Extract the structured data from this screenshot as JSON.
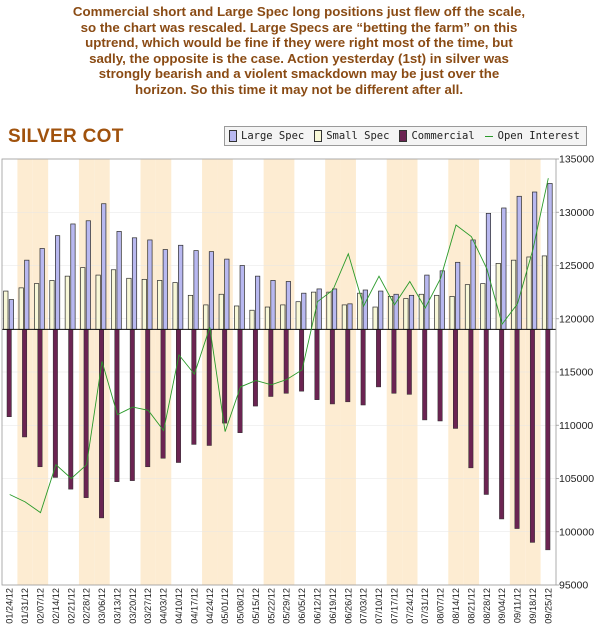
{
  "commentary": "Commercial short and Large Spec long positions just flew off the scale,\nso the chart was rescaled. Large Specs are “betting the farm” on this\nuptrend, which would be fine if they were right most of the time, but\nsadly, the opposite is the case. Action yesterday (1st) in silver was\nstrongly bearish and a violent smackdown may be just over the\nhorizon. So this time it may not be different after all.",
  "chart_data": {
    "type": "bar",
    "title": "SILVER COT",
    "legend": [
      {
        "name": "Large Spec",
        "color": "#b8b8f0",
        "kind": "bar"
      },
      {
        "name": "Small Spec",
        "color": "#f8f8d8",
        "kind": "bar"
      },
      {
        "name": "Commercial",
        "color": "#6b2452",
        "kind": "bar"
      },
      {
        "name": "Open Interest",
        "color": "#2a9a2a",
        "kind": "line"
      }
    ],
    "legend_position": "top-right",
    "ylim": [
      95000,
      135000
    ],
    "yticks": [
      95000,
      100000,
      105000,
      110000,
      115000,
      120000,
      125000,
      130000,
      135000
    ],
    "zero_value": 119000,
    "x_tick_labels": [
      "01/24/12",
      "01/31/12",
      "02/07/12",
      "02/14/12",
      "02/21/12",
      "02/28/12",
      "03/06/12",
      "03/13/12",
      "03/20/12",
      "03/27/12",
      "04/03/12",
      "04/10/12",
      "04/17/12",
      "04/24/12",
      "05/01/12",
      "05/08/12",
      "05/15/12",
      "05/22/12",
      "05/29/12",
      "06/05/12",
      "06/12/12",
      "06/19/12",
      "06/26/12",
      "07/03/12",
      "07/10/12",
      "07/17/12",
      "07/24/12",
      "07/31/12",
      "08/07/12",
      "08/14/12",
      "08/21/12",
      "08/28/12",
      "09/04/12",
      "09/11/12",
      "09/18/12",
      "09/25/12"
    ],
    "series": [
      {
        "name": "Large Spec",
        "values": [
          121.8,
          125.5,
          126.6,
          127.8,
          128.9,
          129.2,
          130.8,
          128.2,
          127.6,
          127.4,
          126.5,
          126.9,
          126.4,
          126.3,
          125.6,
          125.0,
          124.0,
          123.6,
          123.5,
          122.4,
          122.8,
          122.8,
          121.4,
          122.7,
          122.6,
          122.3,
          122.2,
          124.1,
          124.5,
          125.3,
          127.4,
          129.9,
          130.4,
          131.5,
          131.9,
          132.7
        ]
      },
      {
        "name": "Small Spec",
        "values": [
          122.6,
          122.9,
          123.3,
          123.6,
          124.0,
          124.8,
          124.1,
          124.6,
          123.8,
          123.7,
          123.6,
          123.4,
          122.2,
          121.3,
          122.3,
          121.2,
          120.8,
          121.1,
          121.3,
          121.6,
          122.5,
          122.5,
          121.3,
          122.4,
          121.1,
          122.1,
          121.9,
          122.3,
          122.2,
          122.1,
          123.2,
          123.3,
          125.2,
          125.5,
          125.8,
          125.9
        ]
      },
      {
        "name": "Commercial",
        "values": [
          110.8,
          108.9,
          106.1,
          105.1,
          104.0,
          103.2,
          101.3,
          104.7,
          104.8,
          106.1,
          106.9,
          106.5,
          108.2,
          108.1,
          110.2,
          109.3,
          111.8,
          112.7,
          113.0,
          113.2,
          112.4,
          112.0,
          112.2,
          111.9,
          113.6,
          113.0,
          112.9,
          110.5,
          110.4,
          109.7,
          106.0,
          103.5,
          101.2,
          100.3,
          99.0,
          98.3
        ]
      },
      {
        "name": "Open Interest",
        "values": [
          103.5,
          102.8,
          101.8,
          106.3,
          105.0,
          106.3,
          116.0,
          111.0,
          111.7,
          111.4,
          109.5,
          116.6,
          114.8,
          119.2,
          109.4,
          113.6,
          114.2,
          113.8,
          114.3,
          115.2,
          121.6,
          122.7,
          126.1,
          121.2,
          124.0,
          121.3,
          123.5,
          121.0,
          123.8,
          128.8,
          127.7,
          124.7,
          119.5,
          121.4,
          126.5,
          133.2
        ]
      }
    ]
  }
}
